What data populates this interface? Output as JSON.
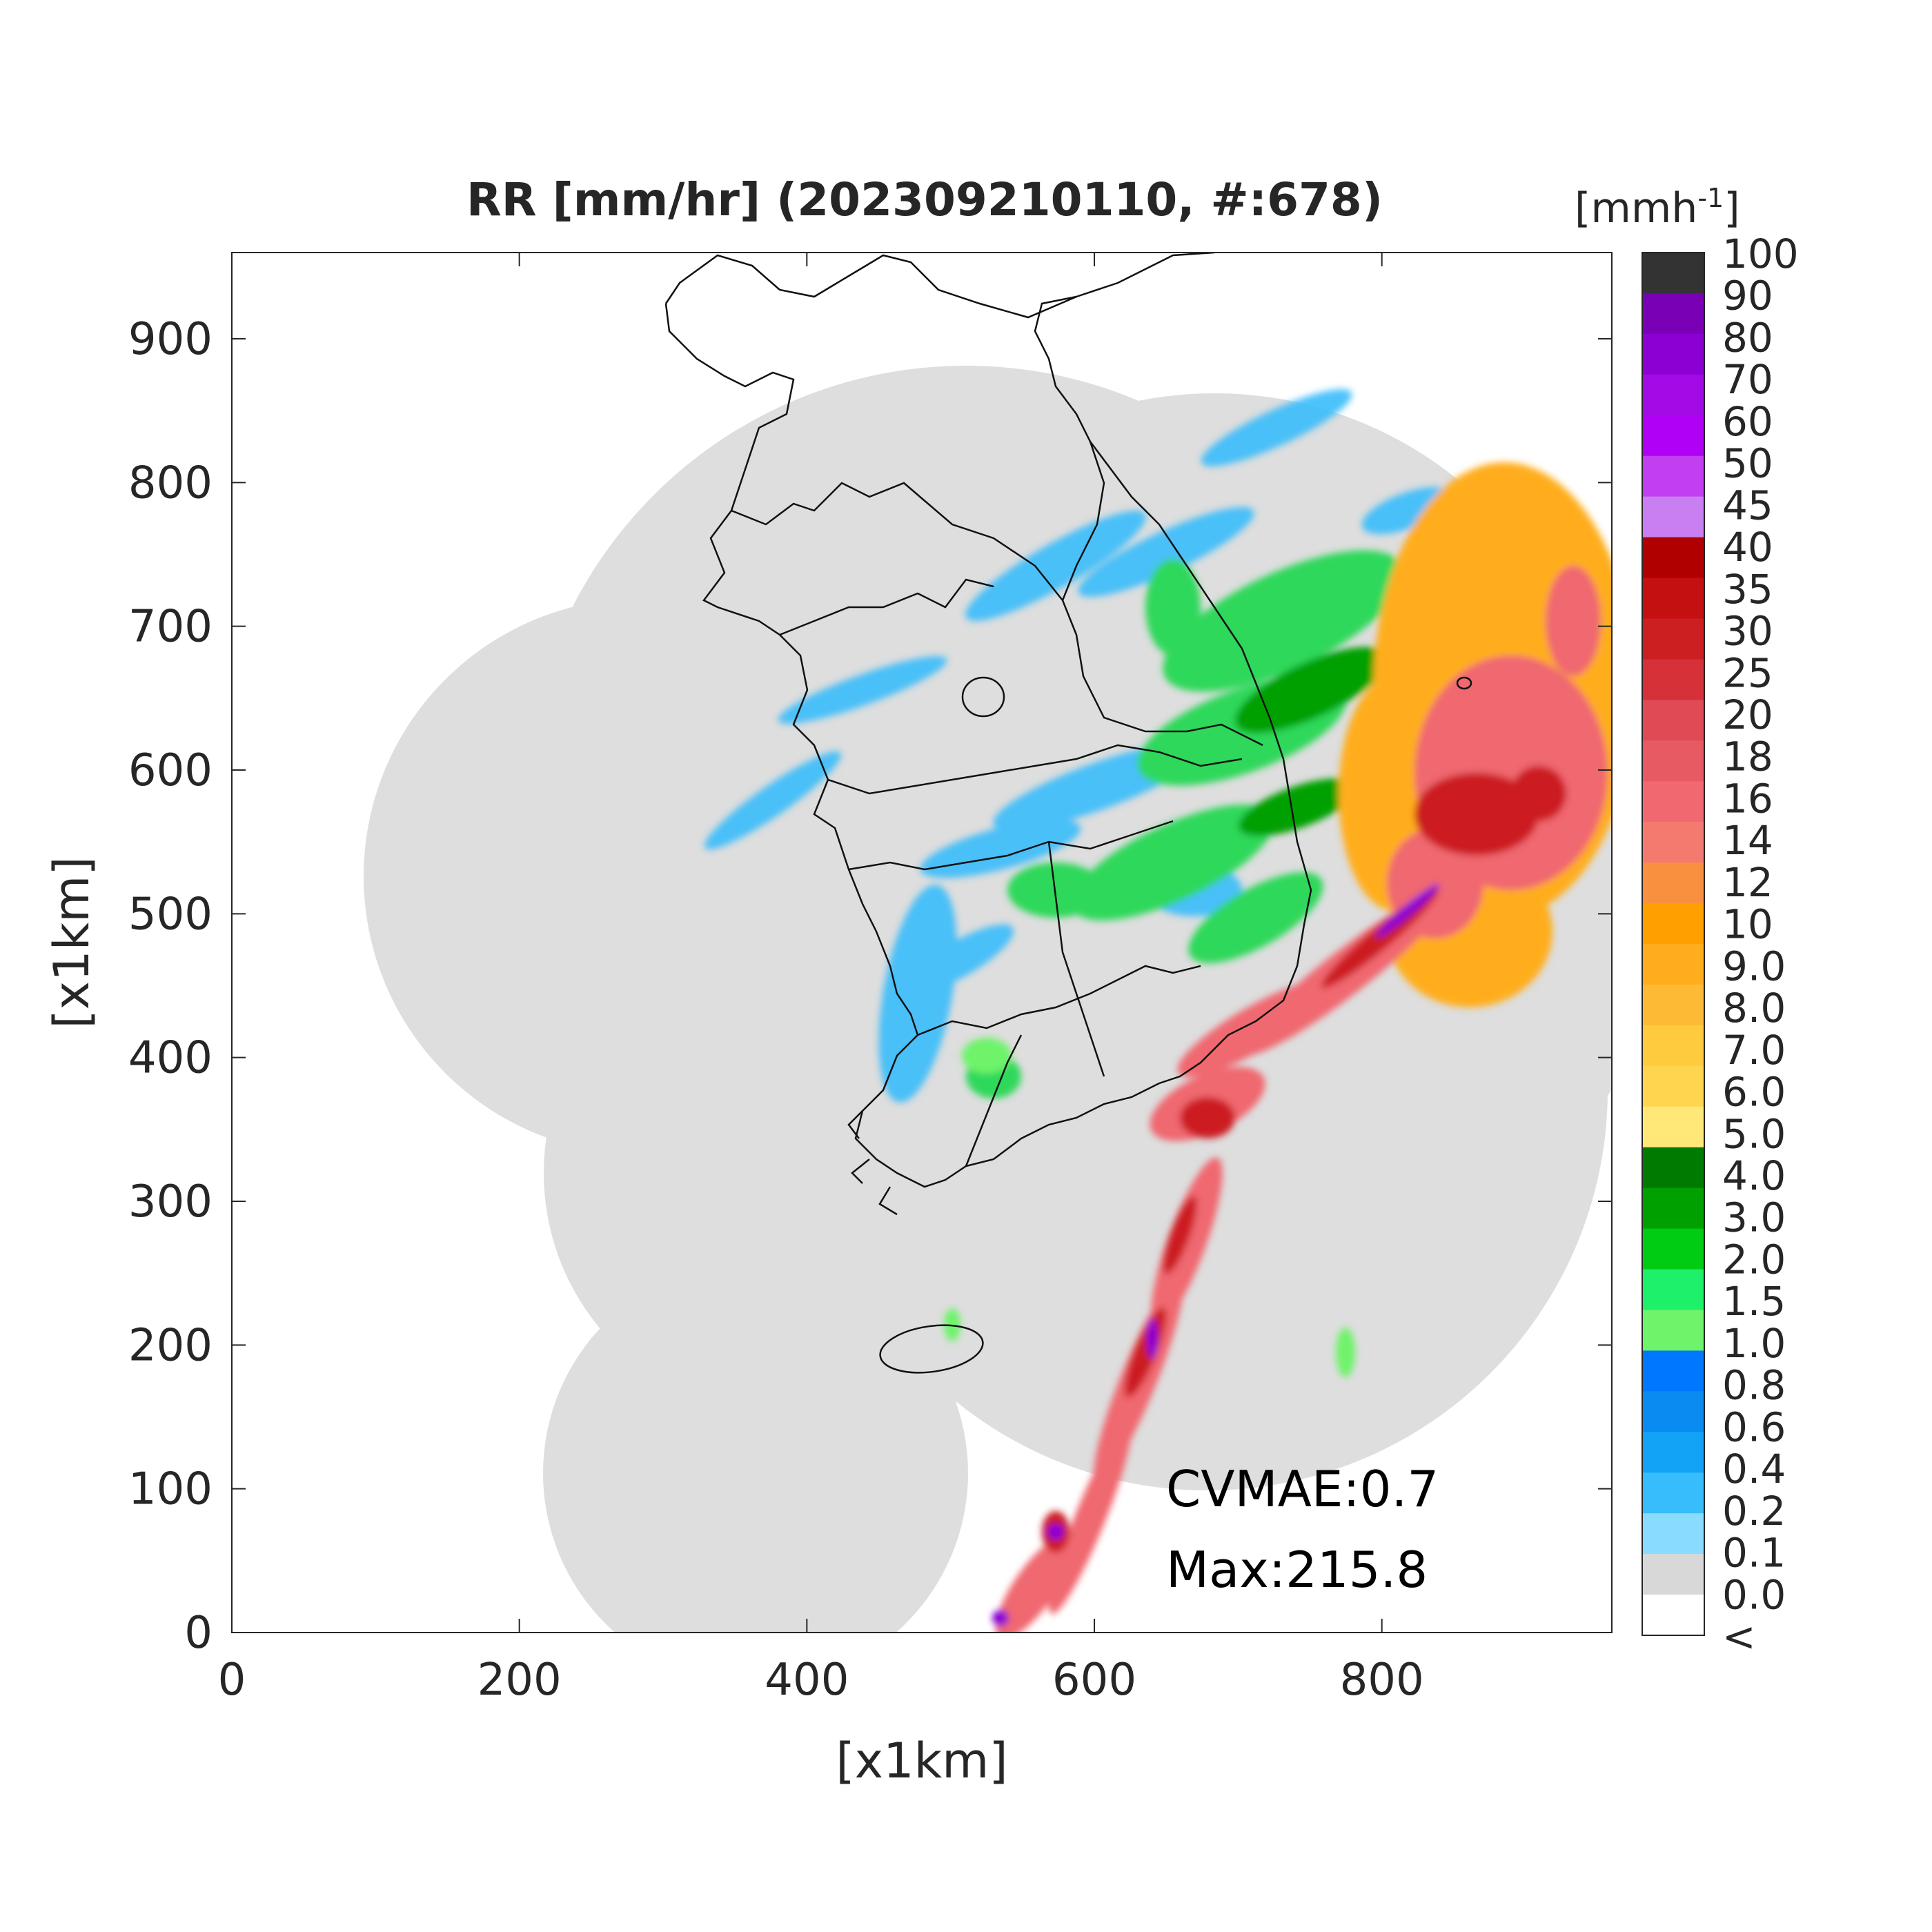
{
  "chart_data": {
    "type": "heatmap",
    "title": "RR [mm/hr] (202309210110, #:678)",
    "xlabel": "[x1km]",
    "ylabel": "[x1km]",
    "xlim": [
      0,
      960
    ],
    "ylim": [
      0,
      960
    ],
    "x_ticks": [
      "0",
      "200",
      "400",
      "600",
      "800"
    ],
    "y_ticks": [
      "0",
      "100",
      "200",
      "300",
      "400",
      "500",
      "600",
      "700",
      "800",
      "900"
    ],
    "colorbar": {
      "unit_label": "[mmh",
      "unit_exponent": "-1",
      "unit_close": "]",
      "tick_labels": [
        "100",
        "90",
        "80",
        "70",
        "60",
        "50",
        "45",
        "40",
        "35",
        "30",
        "25",
        "20",
        "18",
        "16",
        "14",
        "12",
        "10",
        "9.0",
        "8.0",
        "7.0",
        "6.0",
        "5.0",
        "4.0",
        "3.0",
        "2.0",
        "1.5",
        "1.0",
        "0.8",
        "0.6",
        "0.4",
        "0.2",
        "0.1",
        "0.0",
        "<"
      ],
      "colors": [
        "#333333",
        "#7a00b5",
        "#8c00d4",
        "#a30be6",
        "#b000f5",
        "#c13ff0",
        "#c97ff2",
        "#b00000",
        "#c41010",
        "#cc1f22",
        "#d63038",
        "#e04a55",
        "#e85a63",
        "#f06870",
        "#f47a70",
        "#f99040",
        "#ff9f00",
        "#ffad1c",
        "#fdbb35",
        "#fecb3e",
        "#ffd54f",
        "#ffe878",
        "#007a00",
        "#00a000",
        "#00cc14",
        "#1ef06a",
        "#6ef36a",
        "#0077ff",
        "#0a8bf2",
        "#12a3f7",
        "#37bdfb",
        "#8adcff",
        "#d8d8d8",
        "#ffffff"
      ]
    },
    "annotations": [
      "CVMAE:0.7",
      "Max:215.8"
    ],
    "grid": false
  }
}
